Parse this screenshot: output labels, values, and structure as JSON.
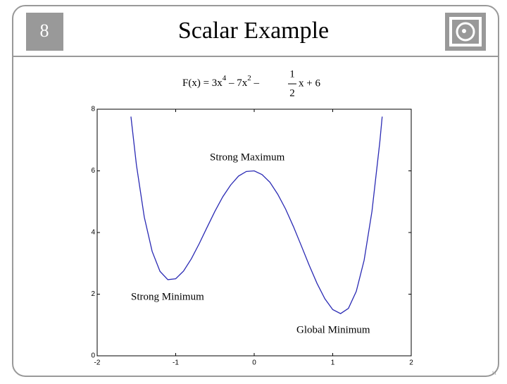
{
  "slide_number": "8",
  "title": "Scalar Example",
  "formula": {
    "lhs": "F(x)  =  3x",
    "exp1": "4",
    "mid": " – 7x",
    "exp2": "2",
    "minus": " –",
    "num": "1",
    "den": "2",
    "rhs": "x + 6"
  },
  "page_number": "11",
  "chart_data": {
    "type": "line",
    "x": [
      -1.57,
      -1.5,
      -1.4,
      -1.3,
      -1.2,
      -1.1,
      -1.0,
      -0.9,
      -0.8,
      -0.7,
      -0.6,
      -0.5,
      -0.4,
      -0.3,
      -0.2,
      -0.1,
      0,
      0.1,
      0.2,
      0.3,
      0.4,
      0.5,
      0.6,
      0.7,
      0.8,
      0.9,
      1.0,
      1.1,
      1.2,
      1.3,
      1.4,
      1.5,
      1.6,
      1.63
    ],
    "series": [
      {
        "color": "#2a2ab4",
        "values": [
          7.76,
          6.19,
          4.5,
          3.39,
          2.74,
          2.47,
          2.5,
          2.75,
          3.15,
          3.64,
          4.17,
          4.69,
          5.16,
          5.54,
          5.83,
          5.98,
          6,
          5.88,
          5.63,
          5.24,
          4.76,
          4.19,
          3.57,
          2.94,
          2.35,
          1.85,
          1.5,
          1.37,
          1.54,
          2.09,
          3.1,
          4.69,
          6.94,
          7.76
        ]
      }
    ],
    "xlim": [
      -2,
      2
    ],
    "xticks": [
      -2,
      -1,
      0,
      1,
      2
    ],
    "ylim": [
      0,
      8
    ],
    "yticks": [
      0,
      2,
      4,
      6,
      8
    ],
    "annotations": [
      "Strong Maximum",
      "Strong Minimum",
      "Global Minimum"
    ]
  }
}
